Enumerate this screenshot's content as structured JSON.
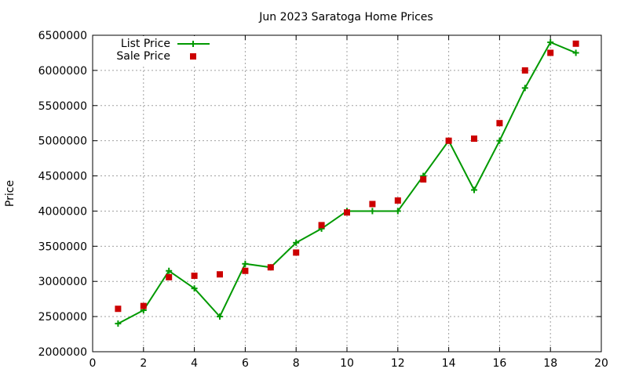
{
  "chart_data": {
    "type": "line",
    "title": "Jun 2023 Saratoga Home Prices",
    "xlabel": "",
    "ylabel": "Price",
    "xlim": [
      0,
      20
    ],
    "ylim": [
      2000000,
      6500000
    ],
    "xticks": [
      0,
      2,
      4,
      6,
      8,
      10,
      12,
      14,
      16,
      18,
      20
    ],
    "yticks": [
      2000000,
      2500000,
      3000000,
      3500000,
      4000000,
      4500000,
      5000000,
      5500000,
      6000000,
      6500000
    ],
    "grid": true,
    "legend_position": "top-left",
    "series": [
      {
        "name": "List Price",
        "style": "line-plus",
        "color": "#009900",
        "x": [
          1,
          2,
          3,
          4,
          5,
          6,
          7,
          8,
          9,
          10,
          11,
          12,
          13,
          14,
          15,
          16,
          17,
          18,
          19
        ],
        "y": [
          2400000,
          2590000,
          3150000,
          2900000,
          2500000,
          3250000,
          3200000,
          3550000,
          3750000,
          4000000,
          4000000,
          4000000,
          4500000,
          5000000,
          4300000,
          5000000,
          5750000,
          6400000,
          6250000
        ]
      },
      {
        "name": "Sale Price",
        "style": "square-points",
        "color": "#cc0000",
        "x": [
          1,
          2,
          3,
          4,
          5,
          6,
          7,
          8,
          9,
          10,
          11,
          12,
          13,
          14,
          15,
          16,
          17,
          18,
          19
        ],
        "y": [
          2610000,
          2650000,
          3060000,
          3080000,
          3100000,
          3150000,
          3200000,
          3410000,
          3800000,
          3980000,
          4100000,
          4150000,
          4450000,
          5000000,
          5030000,
          5250000,
          6000000,
          6250000,
          6380000
        ]
      }
    ]
  }
}
